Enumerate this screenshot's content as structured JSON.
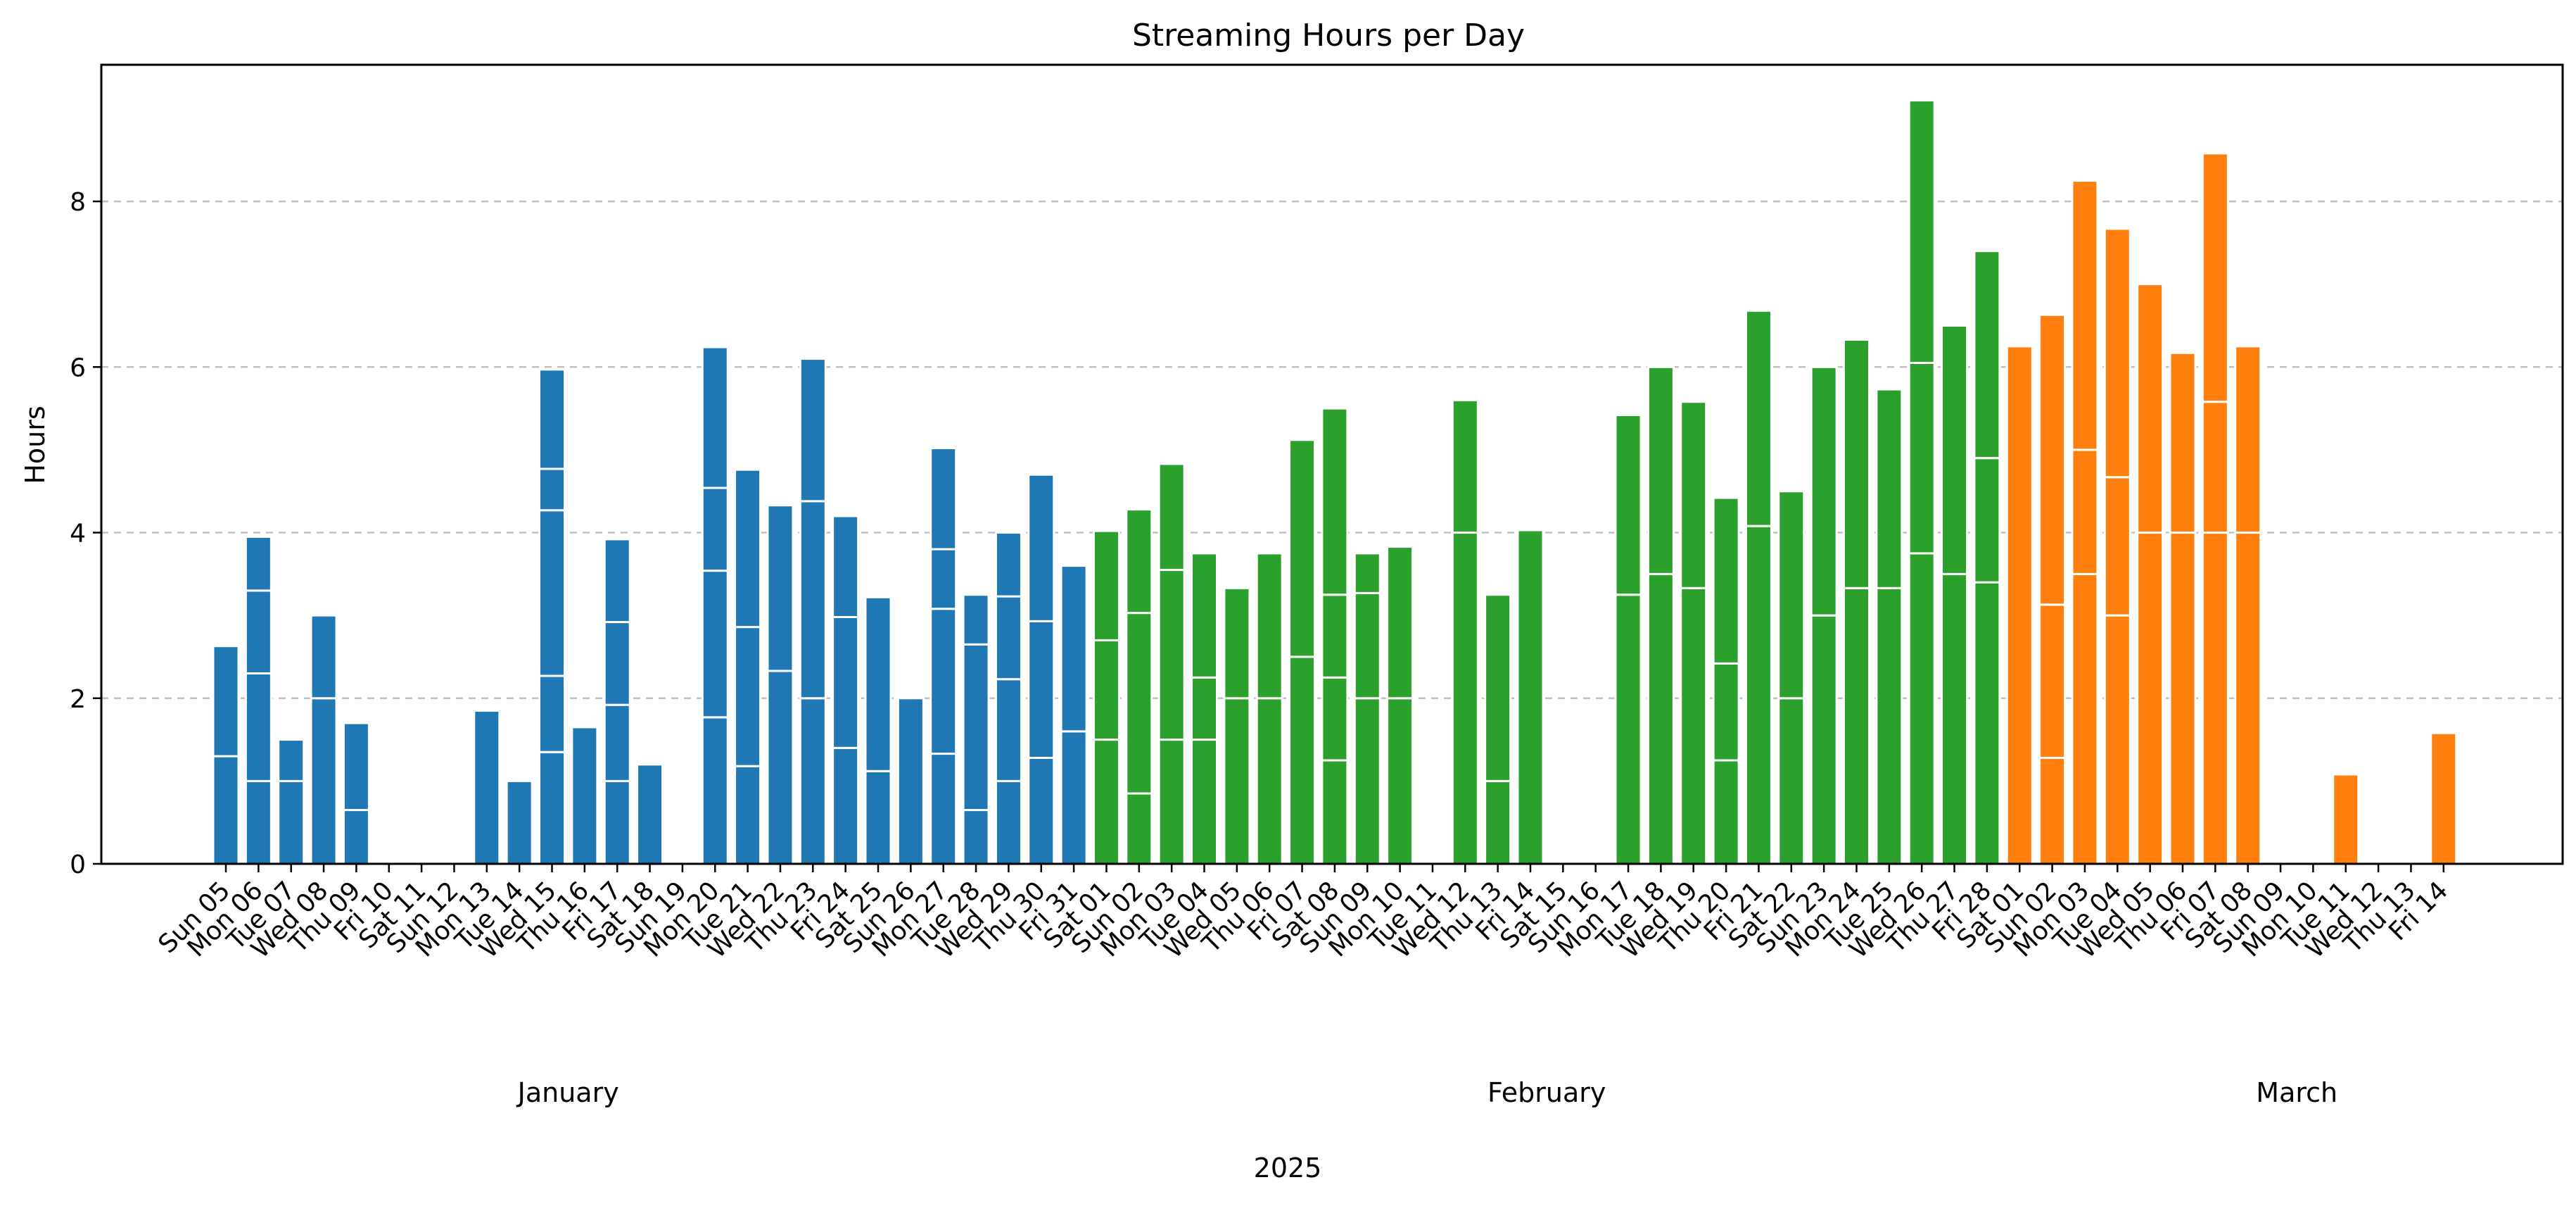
{
  "chart_data": {
    "type": "bar",
    "title": "Streaming Hours per Day",
    "ylabel": "Hours",
    "xlabel": "2025",
    "ylim": [
      0,
      9.65
    ],
    "yticks": [
      0,
      2,
      4,
      6,
      8
    ],
    "grid": "y",
    "months": [
      {
        "label": "January",
        "center_index": 10.5
      },
      {
        "label": "February",
        "center_index": 40.5
      },
      {
        "label": "March",
        "center_index": 63.5
      }
    ],
    "colors": {
      "January": "#1f77b4",
      "February": "#2ca02c",
      "March": "#ff7f0e"
    },
    "categories": [
      "Sun 05",
      "Mon 06",
      "Tue 07",
      "Wed 08",
      "Thu 09",
      "Fri 10",
      "Sat 11",
      "Sun 12",
      "Mon 13",
      "Tue 14",
      "Wed 15",
      "Thu 16",
      "Fri 17",
      "Sat 18",
      "Sun 19",
      "Mon 20",
      "Tue 21",
      "Wed 22",
      "Thu 23",
      "Fri 24",
      "Sat 25",
      "Sun 26",
      "Mon 27",
      "Tue 28",
      "Wed 29",
      "Thu 30",
      "Fri 31",
      "Sat 01",
      "Sun 02",
      "Mon 03",
      "Tue 04",
      "Wed 05",
      "Thu 06",
      "Fri 07",
      "Sat 08",
      "Sun 09",
      "Mon 10",
      "Tue 11",
      "Wed 12",
      "Thu 13",
      "Fri 14",
      "Sat 15",
      "Sun 16",
      "Mon 17",
      "Tue 18",
      "Wed 19",
      "Thu 20",
      "Fri 21",
      "Sat 22",
      "Sun 23",
      "Mon 24",
      "Tue 25",
      "Wed 26",
      "Thu 27",
      "Fri 28",
      "Sat 01",
      "Sun 02",
      "Mon 03",
      "Tue 04",
      "Wed 05",
      "Thu 06",
      "Fri 07",
      "Sat 08",
      "Sun 09",
      "Mon 10",
      "Tue 11",
      "Wed 12",
      "Thu 13",
      "Fri 14"
    ],
    "month_of_bar": [
      "January",
      "January",
      "January",
      "January",
      "January",
      "January",
      "January",
      "January",
      "January",
      "January",
      "January",
      "January",
      "January",
      "January",
      "January",
      "January",
      "January",
      "January",
      "January",
      "January",
      "January",
      "January",
      "January",
      "January",
      "January",
      "January",
      "January",
      "February",
      "February",
      "February",
      "February",
      "February",
      "February",
      "February",
      "February",
      "February",
      "February",
      "February",
      "February",
      "February",
      "February",
      "February",
      "February",
      "February",
      "February",
      "February",
      "February",
      "February",
      "February",
      "February",
      "February",
      "February",
      "February",
      "February",
      "February",
      "March",
      "March",
      "March",
      "March",
      "March",
      "March",
      "March",
      "March",
      "March",
      "March",
      "March",
      "March",
      "March",
      "March"
    ],
    "segments": [
      [
        1.3,
        1.33
      ],
      [
        1.0,
        1.3,
        1.0,
        0.65
      ],
      [
        1.0,
        0.5
      ],
      [
        2.0,
        1.0
      ],
      [
        0.65,
        1.05
      ],
      [],
      [],
      [],
      [
        1.85
      ],
      [
        1.0
      ],
      [
        1.35,
        0.92,
        2.0,
        0.5,
        1.2
      ],
      [
        1.65
      ],
      [
        1.0,
        0.92,
        1.0,
        1.0
      ],
      [
        1.2
      ],
      [],
      [
        1.77,
        1.77,
        1.0,
        1.7
      ],
      [
        1.18,
        1.68,
        1.9
      ],
      [
        2.33,
        2.0
      ],
      [
        2.0,
        2.38,
        1.72
      ],
      [
        1.4,
        1.58,
        1.22
      ],
      [
        1.12,
        2.1
      ],
      [
        2.0
      ],
      [
        1.33,
        1.75,
        0.72,
        1.22
      ],
      [
        0.65,
        2.0,
        0.6
      ],
      [
        1.0,
        1.23,
        1.0,
        0.77
      ],
      [
        1.28,
        1.65,
        1.77
      ],
      [
        1.6,
        2.0
      ],
      [
        1.5,
        1.2,
        1.32
      ],
      [
        0.85,
        2.18,
        1.25
      ],
      [
        1.5,
        2.05,
        1.28
      ],
      [
        1.5,
        0.75,
        1.5
      ],
      [
        2.0,
        1.33
      ],
      [
        2.0,
        1.75
      ],
      [
        2.5,
        2.62
      ],
      [
        1.25,
        1.0,
        1.0,
        2.25
      ],
      [
        2.0,
        1.27,
        0.48
      ],
      [
        2.0,
        1.83
      ],
      [],
      [
        4.0,
        1.6
      ],
      [
        1.0,
        2.25
      ],
      [
        4.03
      ],
      [],
      [],
      [
        3.25,
        2.17
      ],
      [
        3.5,
        2.5
      ],
      [
        3.33,
        2.25
      ],
      [
        1.25,
        1.17,
        2.0
      ],
      [
        4.08,
        2.6
      ],
      [
        2.0,
        2.5
      ],
      [
        3.0,
        3.0
      ],
      [
        3.33,
        3.0
      ],
      [
        3.33,
        2.4
      ],
      [
        3.75,
        2.3,
        3.17
      ],
      [
        3.5,
        3.0
      ],
      [
        3.4,
        1.5,
        2.5
      ],
      [
        6.25
      ],
      [
        1.28,
        1.85,
        3.5
      ],
      [
        3.5,
        1.5,
        3.25
      ],
      [
        3.0,
        1.67,
        3.0
      ],
      [
        4.0,
        3.0
      ],
      [
        4.0,
        2.17
      ],
      [
        4.0,
        1.58,
        3.0
      ],
      [
        4.0,
        2.25
      ],
      [],
      [],
      [
        1.08
      ],
      [],
      [],
      [
        1.58
      ]
    ]
  }
}
